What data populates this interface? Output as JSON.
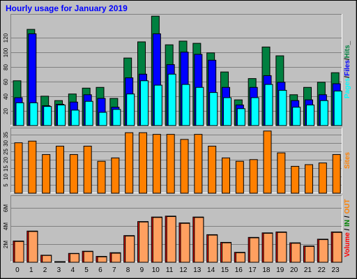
{
  "title": "Hourly usage for January 2019",
  "colors": {
    "background": "#c0c0c0",
    "hits": "#008040",
    "files": "#0000ff",
    "pages": "#00ffff",
    "sites": "#ff8000",
    "volume": "#ff0000",
    "volume_in": "#ffa060",
    "title": "#0000ff"
  },
  "chart_data": {
    "type": "bar",
    "title": "Hourly usage for January 2019",
    "categories": [
      "0",
      "1",
      "2",
      "3",
      "4",
      "5",
      "6",
      "7",
      "8",
      "9",
      "10",
      "11",
      "12",
      "13",
      "14",
      "15",
      "16",
      "17",
      "18",
      "19",
      "20",
      "21",
      "22",
      "23"
    ],
    "panels": [
      {
        "name": "hits-files-pages",
        "ylabel_parts": [
          "Pages",
          "/",
          "Files",
          "/",
          "Hits",
          "_"
        ],
        "yticks": [
          "20",
          "40",
          "60",
          "80",
          "100",
          "120"
        ],
        "ylim": [
          0,
          152
        ],
        "series": [
          {
            "name": "Hits",
            "values": [
              61,
              131,
              40,
              34,
              43,
              51,
              52,
              37,
              92,
              114,
              149,
              110,
              115,
              112,
              99,
              73,
              35,
              64,
              107,
              95,
              42,
              52,
              59,
              72
            ]
          },
          {
            "name": "Files",
            "values": [
              38,
              125,
              27,
              29,
              32,
              42,
              37,
              25,
              65,
              70,
              125,
              83,
              100,
              97,
              89,
              52,
              28,
              52,
              68,
              59,
              34,
              35,
              42,
              57
            ]
          },
          {
            "name": "Pages",
            "values": [
              31,
              31,
              26,
              28,
              21,
              33,
              18,
              22,
              43,
              61,
              55,
              70,
              56,
              52,
              45,
              38,
              23,
              38,
              56,
              48,
              25,
              28,
              34,
              47
            ]
          }
        ]
      },
      {
        "name": "sites",
        "ylabel_parts": [
          "Sites"
        ],
        "yticks": [
          "5",
          "10",
          "15",
          "20",
          "25",
          "30",
          "35"
        ],
        "ylim": [
          0,
          39
        ],
        "series": [
          {
            "name": "Sites",
            "values": [
              30,
              31,
              23,
              28,
              23,
              28,
              19,
              21,
              36,
              36,
              35,
              35,
              32,
              35,
              28,
              21,
              19,
              20,
              37,
              24,
              16,
              17,
              18,
              23
            ]
          }
        ]
      },
      {
        "name": "volume",
        "ylabel_parts": [
          "Volume",
          "/",
          "IN",
          "/",
          "OUT"
        ],
        "yticks": [
          "2M",
          "4M",
          "6M"
        ],
        "ylim": [
          0,
          7.4
        ],
        "series": [
          {
            "name": "Volume",
            "values": [
              2.35,
              3.45,
              0.78,
              0.07,
              0.98,
              1.22,
              0.65,
              1.06,
              2.95,
              4.5,
              5.0,
              5.1,
              4.35,
              5.0,
              3.05,
              2.2,
              1.1,
              2.75,
              3.25,
              3.35,
              2.15,
              1.8,
              2.55,
              3.35
            ]
          },
          {
            "name": "IN",
            "values": [
              2.3,
              3.4,
              0.75,
              0.05,
              0.95,
              1.18,
              0.6,
              1.0,
              2.9,
              4.45,
              4.95,
              5.05,
              4.3,
              4.95,
              3.0,
              2.15,
              1.05,
              2.7,
              3.2,
              3.3,
              2.1,
              1.75,
              2.5,
              3.3
            ]
          }
        ]
      }
    ]
  }
}
